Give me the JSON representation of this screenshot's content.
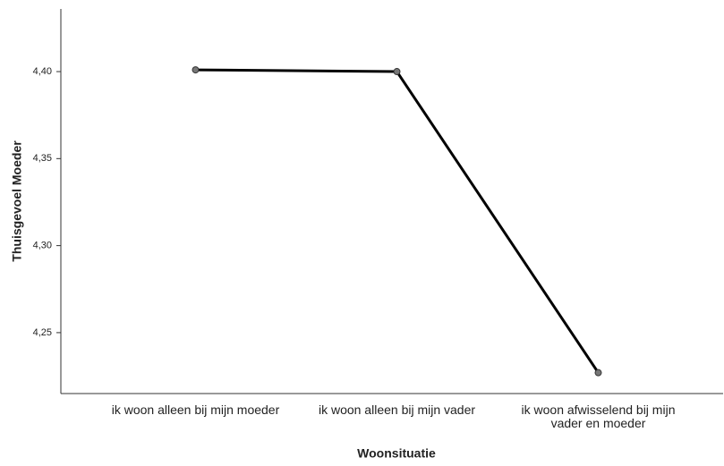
{
  "chart_data": {
    "type": "line",
    "xlabel": "Woonsituatie",
    "ylabel": "Thuisgevoel Moeder",
    "categories": [
      "ik woon alleen bij mijn moeder",
      "ik woon alleen bij mijn vader",
      "ik woon afwisselend bij mijn vader en moeder"
    ],
    "series": [
      {
        "color": "#000000",
        "values": [
          4.401,
          4.4,
          4.227
        ]
      }
    ],
    "ylim": [
      4.215,
      4.436
    ],
    "yticks": [
      {
        "value": 4.25,
        "label": "4,25"
      },
      {
        "value": 4.3,
        "label": "4,30"
      },
      {
        "value": 4.35,
        "label": "4,35"
      },
      {
        "value": 4.4,
        "label": "4,40"
      }
    ],
    "grid": false
  }
}
